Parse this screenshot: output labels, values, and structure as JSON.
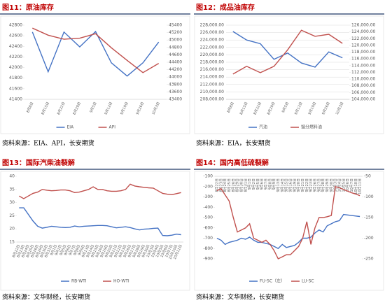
{
  "chart_data": [
    {
      "type": "line",
      "title": "图11：原油库存",
      "source": "资料来源：EIA、API，长安期货",
      "categories": [
        "8月8日",
        "8月15日",
        "8月22日",
        "8月29日",
        "9月5日",
        "9月12日",
        "9月19日",
        "9月26日",
        "10月3日"
      ],
      "series": [
        {
          "name": "EIA",
          "color": "#4472c4",
          "values": [
            42670,
            41920,
            42670,
            42390,
            42680,
            42090,
            41840,
            42090,
            42480
          ]
        },
        {
          "name": "API",
          "color": "#c0504d",
          "axis": "y2",
          "values": [
            45320,
            45130,
            45020,
            45050,
            45170,
            44790,
            44450,
            44120,
            44370
          ]
        }
      ],
      "ylim": [
        41400,
        42800
      ],
      "yticks": [
        41400,
        41600,
        41800,
        42000,
        42200,
        42400,
        42600,
        42800
      ],
      "y2lim": [
        43400,
        45400
      ],
      "y2ticks": [
        43400,
        43600,
        43800,
        44000,
        44200,
        44400,
        44600,
        44800,
        45000,
        45200,
        45400
      ],
      "grid": false
    },
    {
      "type": "line",
      "title": "图12：成品油库存",
      "source": "资料来源：EIA，长安期货",
      "categories": [
        "8月8日",
        "8月15日",
        "8月22日",
        "8月29日",
        "9月5日",
        "9月12日",
        "9月19日",
        "9月26日",
        "10月3日"
      ],
      "series": [
        {
          "name": "汽油",
          "color": "#4472c4",
          "values": [
            226300,
            224000,
            223000,
            218800,
            220500,
            217800,
            216700,
            220800,
            219200
          ]
        },
        {
          "name": "馏分燃料油",
          "color": "#c0504d",
          "axis": "y2",
          "values": [
            111500,
            113800,
            111900,
            113800,
            118700,
            124500,
            122700,
            123300,
            120600
          ]
        }
      ],
      "ylim": [
        208000,
        228000
      ],
      "yticks": [
        {
          "value": 208000,
          "label": "208,000.00"
        },
        {
          "value": 210000,
          "label": "210,000.00"
        },
        {
          "value": 212000,
          "label": "212,000.00"
        },
        {
          "value": 214000,
          "label": "214,000.00"
        },
        {
          "value": 216000,
          "label": "216,000.00"
        },
        {
          "value": 218000,
          "label": "218,000.00"
        },
        {
          "value": 220000,
          "label": "220,000.00"
        },
        {
          "value": 222000,
          "label": "222,000.00"
        },
        {
          "value": 224000,
          "label": "224,000.00"
        },
        {
          "value": 226000,
          "label": "226,000.00"
        },
        {
          "value": 228000,
          "label": "228,000.00"
        }
      ],
      "y2lim": [
        104000,
        126000
      ],
      "y2ticks": [
        {
          "value": 104000,
          "label": "104,000.00"
        },
        {
          "value": 106000,
          "label": "106,000.00"
        },
        {
          "value": 108000,
          "label": "108,000.00"
        },
        {
          "value": 110000,
          "label": "110,000.00"
        },
        {
          "value": 112000,
          "label": "112,000.00"
        },
        {
          "value": 114000,
          "label": "114,000.00"
        },
        {
          "value": 116000,
          "label": "116,000.00"
        },
        {
          "value": 118000,
          "label": "118,000.00"
        },
        {
          "value": 120000,
          "label": "120,000.00"
        },
        {
          "value": 122000,
          "label": "122,000.00"
        },
        {
          "value": 124000,
          "label": "124,000.00"
        },
        {
          "value": 126000,
          "label": "126,000.00"
        }
      ],
      "grid": true
    },
    {
      "type": "line",
      "title": "图13：国际汽柴油裂解",
      "source": "资料来源：文华财经，长安期货",
      "categories": [
        "8月22日",
        "8月23日",
        "8月24日",
        "8月25日",
        "8月26日",
        "8月29日",
        "8月30日",
        "8月31日",
        "9月1日",
        "9月2日",
        "9月5日",
        "9月6日",
        "9月7日",
        "9月8日",
        "9月9日",
        "9月13日",
        "9月14日",
        "9月15日",
        "9月16日",
        "9月19日",
        "9月20日",
        "9月21日",
        "9月22日",
        "9月23日",
        "9月26日",
        "9月27日",
        "9月28日",
        "9月29日",
        "9月30日",
        "10月3日",
        "10月4日",
        "10月5日",
        "10月6日",
        "10月7日",
        "10月10日",
        "10月11日"
      ],
      "series": [
        {
          "name": "RB-WTI",
          "color": "#4472c4",
          "values": [
            28,
            28,
            25.5,
            23,
            21,
            20.3,
            20.6,
            21,
            20.8,
            20.6,
            20.5,
            20.6,
            21.1,
            20.8,
            21,
            21.1,
            21.2,
            21.3,
            21.3,
            21.2,
            20.8,
            20.4,
            20.6,
            20.8,
            20.5,
            20,
            19.6,
            19.9,
            20,
            20.2,
            20.3,
            17.5,
            17.4,
            17.6,
            18,
            17.8
          ]
        },
        {
          "name": "HO-WTI",
          "color": "#c0504d",
          "values": [
            32.5,
            31.5,
            32.5,
            33.5,
            34,
            35,
            34.7,
            34.5,
            34.6,
            34.8,
            34.8,
            34.5,
            33.8,
            34,
            34.5,
            35,
            36,
            35,
            35,
            34.5,
            34.3,
            34.3,
            34.5,
            35,
            37,
            36.3,
            36,
            35.8,
            35.6,
            35.5,
            34.5,
            33.5,
            33.2,
            33,
            33.4,
            33.8
          ]
        }
      ],
      "ylim": [
        15,
        40
      ],
      "yticks": [
        15,
        20,
        25,
        30,
        35,
        40
      ],
      "grid": false
    },
    {
      "type": "line",
      "title": "图14：国内高低硫裂解",
      "source": "资料来源：文华财经，长安期货",
      "categories": [
        "8月22日",
        "8月23日",
        "8月24日",
        "8月25日",
        "8月26日",
        "8月29日",
        "8月30日",
        "8月31日",
        "9月1日",
        "9月2日",
        "9月5日",
        "9月6日",
        "9月7日",
        "9月8日",
        "9月9日",
        "9月13日",
        "9月14日",
        "9月15日",
        "9月16日",
        "9月19日",
        "9月20日",
        "9月21日",
        "9月22日",
        "9月23日",
        "9月26日",
        "9月27日",
        "9月28日",
        "9月29日",
        "9月30日",
        "10月3日",
        "10月4日",
        "10月5日",
        "10月6日",
        "10月7日",
        "10月10日",
        "10月11日"
      ],
      "series": [
        {
          "name": "FU-SC（左）",
          "color": "#4472c4",
          "values": [
            -700,
            -720,
            -760,
            -740,
            -730,
            -720,
            -700,
            -710,
            -690,
            -720,
            -740,
            -740,
            -750,
            -760,
            -780,
            -800,
            -760,
            -790,
            -780,
            -770,
            -740,
            -700,
            -700,
            -690,
            -650,
            -620,
            -640,
            -580,
            -560,
            -540,
            -530,
            -470,
            -475,
            -480,
            -485,
            -490
          ]
        },
        {
          "name": "LU-SC",
          "color": "#c0504d",
          "axis": "y2",
          "values": [
            -85,
            -80,
            -95,
            -110,
            -150,
            -185,
            -180,
            -175,
            -165,
            -200,
            -205,
            -210,
            -205,
            -215,
            -230,
            -250,
            -245,
            -240,
            -240,
            -230,
            -220,
            -200,
            -160,
            -215,
            -175,
            -150,
            -150,
            -148,
            -145,
            -75,
            -78,
            -82,
            -86,
            -90,
            -93,
            -97
          ]
        }
      ],
      "ylim": [
        -900,
        -100
      ],
      "yticks": [
        -900,
        -800,
        -700,
        -600,
        -500,
        -400,
        -300,
        -200,
        -100
      ],
      "y2lim": [
        -250,
        -50
      ],
      "y2ticks": [
        -250,
        -200,
        -150,
        -100,
        -50
      ],
      "grid": false,
      "x_axis_top": true
    }
  ]
}
